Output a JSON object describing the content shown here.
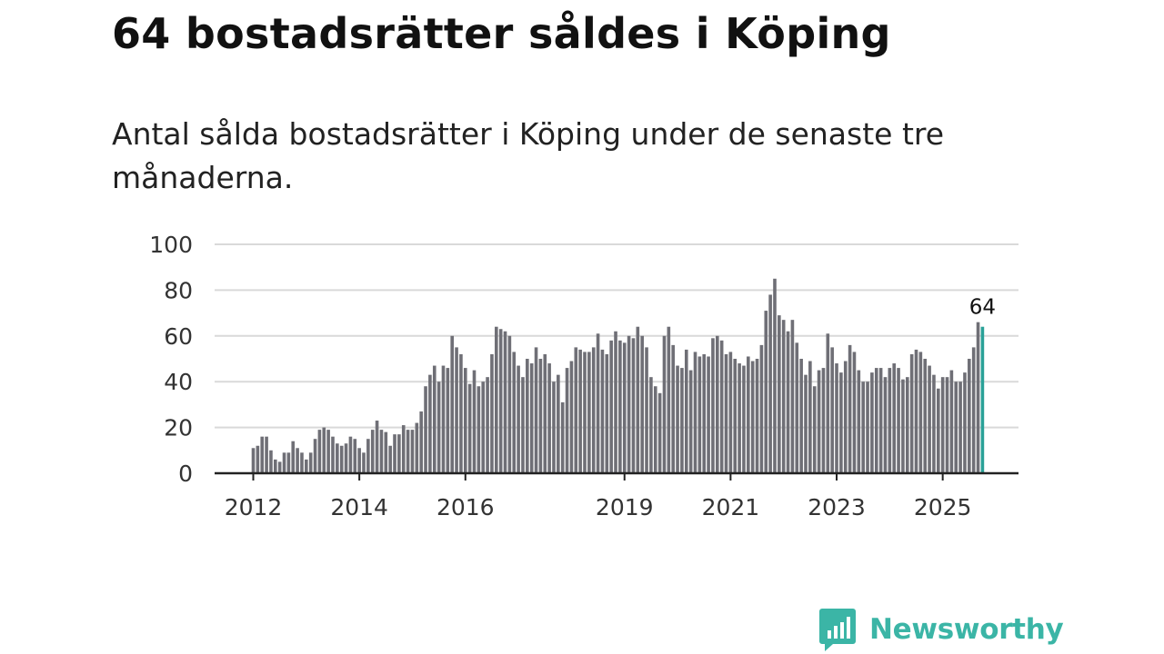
{
  "title": "64 bostadsrätter såldes i Köping",
  "subtitle": "Antal sålda bostadsrätter i Köping under de senaste tre månaderna.",
  "brand": {
    "name": "Newsworthy",
    "logo_icon": "bar-chart-speech-bubble-icon"
  },
  "colors": {
    "bar": "#6f6f76",
    "highlight": "#2aa198",
    "grid": "#d9d9d9",
    "axis": "#222222",
    "brand": "#3bb5a6"
  },
  "chart_data": {
    "type": "bar",
    "title": "64 bostadsrätter såldes i Köping",
    "xlabel": "",
    "ylabel": "",
    "ylim": [
      0,
      100
    ],
    "yticks": [
      "0",
      "20",
      "40",
      "60",
      "80",
      "100"
    ],
    "xticks": [
      {
        "label": "2012",
        "index": 0
      },
      {
        "label": "2014",
        "index": 24
      },
      {
        "label": "2016",
        "index": 48
      },
      {
        "label": "2019",
        "index": 84
      },
      {
        "label": "2021",
        "index": 108
      },
      {
        "label": "2023",
        "index": 132
      },
      {
        "label": "2025",
        "index": 156
      }
    ],
    "start": "2012-01",
    "highlight_label": "64",
    "values": [
      11,
      12,
      16,
      16,
      10,
      6,
      5,
      9,
      9,
      14,
      11,
      9,
      6,
      9,
      15,
      19,
      20,
      19,
      16,
      13,
      12,
      13,
      16,
      15,
      11,
      9,
      15,
      19,
      23,
      19,
      18,
      12,
      17,
      17,
      21,
      19,
      19,
      22,
      27,
      38,
      43,
      47,
      40,
      47,
      46,
      60,
      55,
      52,
      46,
      39,
      45,
      38,
      40,
      42,
      52,
      64,
      63,
      62,
      60,
      53,
      47,
      42,
      50,
      48,
      55,
      50,
      52,
      48,
      40,
      43,
      31,
      46,
      49,
      55,
      54,
      53,
      53,
      55,
      61,
      54,
      52,
      58,
      62,
      58,
      57,
      60,
      59,
      64,
      60,
      55,
      42,
      38,
      35,
      60,
      64,
      56,
      47,
      46,
      54,
      45,
      53,
      51,
      52,
      51,
      59,
      60,
      58,
      52,
      53,
      50,
      48,
      47,
      51,
      49,
      50,
      56,
      71,
      78,
      85,
      69,
      67,
      62,
      67,
      57,
      50,
      43,
      49,
      38,
      45,
      46,
      61,
      55,
      48,
      44,
      49,
      56,
      53,
      45,
      40,
      40,
      44,
      46,
      46,
      42,
      46,
      48,
      46,
      41,
      42,
      52,
      54,
      53,
      50,
      47,
      43,
      37,
      42,
      42,
      45,
      40,
      40,
      44,
      50,
      55,
      66,
      64
    ]
  }
}
